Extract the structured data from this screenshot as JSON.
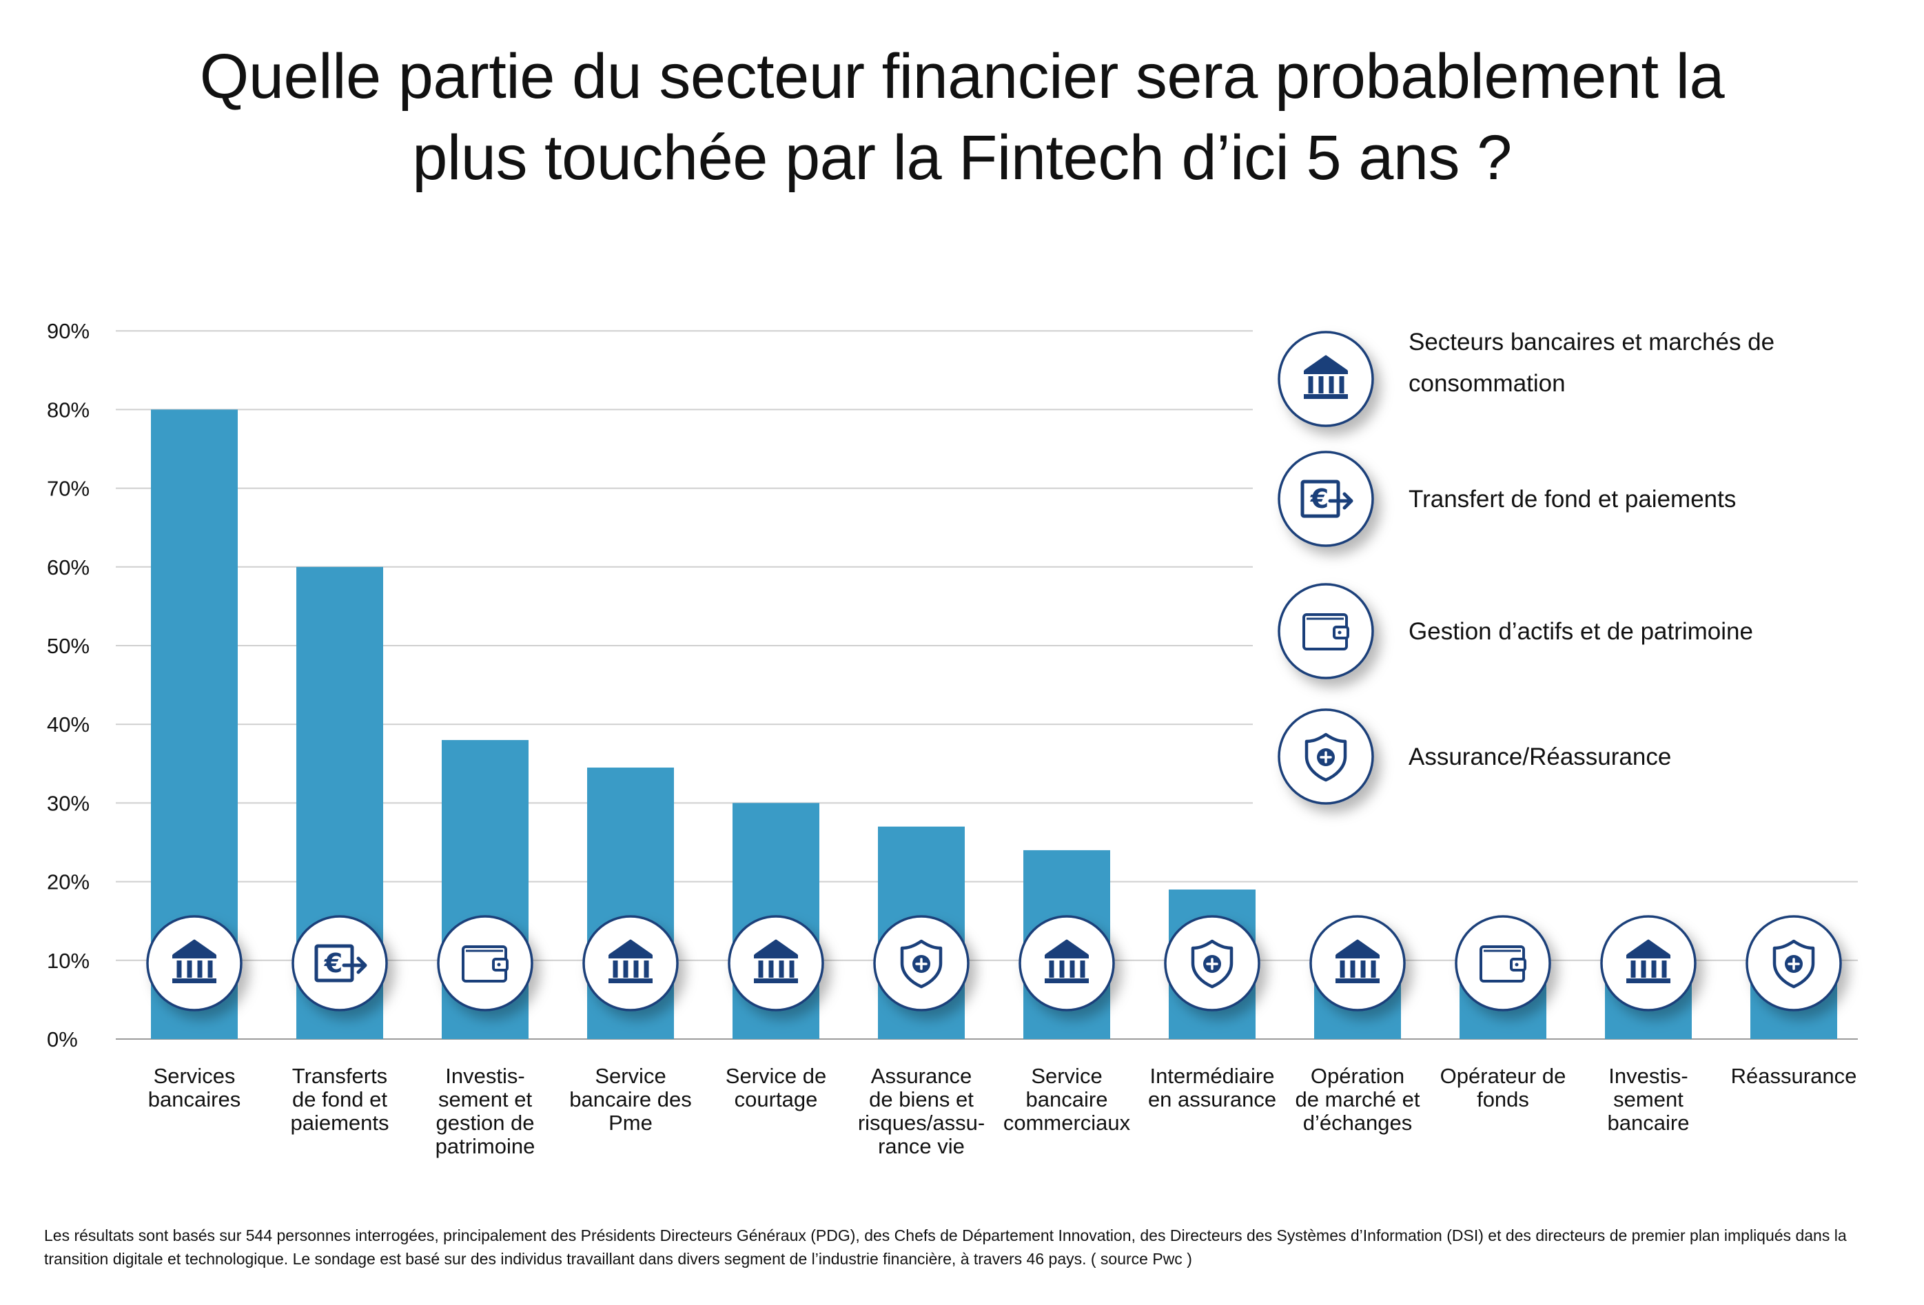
{
  "title": {
    "line1": "Quelle partie du secteur financier sera probablement la",
    "line2": "plus touchée par la Fintech d’ici 5 ans ?"
  },
  "colors": {
    "bar": "#3a9bc6",
    "icon": "#1a3f7a",
    "grid": "#cfcfcf",
    "axis": "#9a9a9a"
  },
  "chart_data": {
    "type": "bar",
    "ylim": [
      0,
      90
    ],
    "yticks": [
      "0%",
      "10%",
      "20%",
      "30%",
      "40%",
      "50%",
      "60%",
      "70%",
      "80%",
      "90%"
    ],
    "grid": true,
    "legend_position": "top-right",
    "categories": [
      [
        "Services",
        "bancaires"
      ],
      [
        "Transferts",
        "de fond et",
        "paiements"
      ],
      [
        "Investis-",
        "sement et",
        "gestion de",
        "patrimoine"
      ],
      [
        "Service",
        "bancaire des",
        "Pme"
      ],
      [
        "Service de",
        "courtage"
      ],
      [
        "Assurance",
        "de biens et",
        "risques/assu-",
        "rance vie"
      ],
      [
        "Service",
        "bancaire",
        "commerciaux"
      ],
      [
        "Intermédiaire",
        "en assurance"
      ],
      [
        "Opération",
        "de marché et",
        "d’échanges"
      ],
      [
        "Opérateur de",
        "fonds"
      ],
      [
        "Investis-",
        "sement",
        "bancaire"
      ],
      [
        "Réassurance"
      ]
    ],
    "values": [
      80,
      60,
      38,
      34.5,
      30,
      27,
      24,
      19,
      8,
      8,
      8,
      8
    ],
    "bar_icons": [
      "bank-icon",
      "transfer-icon",
      "wallet-icon",
      "bank-icon",
      "bank-icon",
      "shield-icon",
      "bank-icon",
      "shield-icon",
      "bank-icon",
      "wallet-icon",
      "bank-icon",
      "shield-icon"
    ],
    "legend": [
      {
        "icon": "bank-icon",
        "lines": [
          "Secteurs bancaires et marchés de",
          "consommation"
        ]
      },
      {
        "icon": "transfer-icon",
        "lines": [
          "Transfert de fond et paiements"
        ]
      },
      {
        "icon": "wallet-icon",
        "lines": [
          "Gestion d’actifs et de patrimoine"
        ]
      },
      {
        "icon": "shield-icon",
        "lines": [
          "Assurance/Réassurance"
        ]
      }
    ]
  },
  "footnote": "Les résultats sont basés sur 544 personnes interrogées, principalement des Présidents Directeurs Généraux (PDG), des Chefs de Département Innovation, des Directeurs des Systèmes d’Information (DSI) et des directeurs de premier plan impliqués dans la transition digitale et technologique. Le sondage est basé sur des individus travaillant dans divers segment de l’industrie financière, à travers 46 pays. ( source Pwc )"
}
